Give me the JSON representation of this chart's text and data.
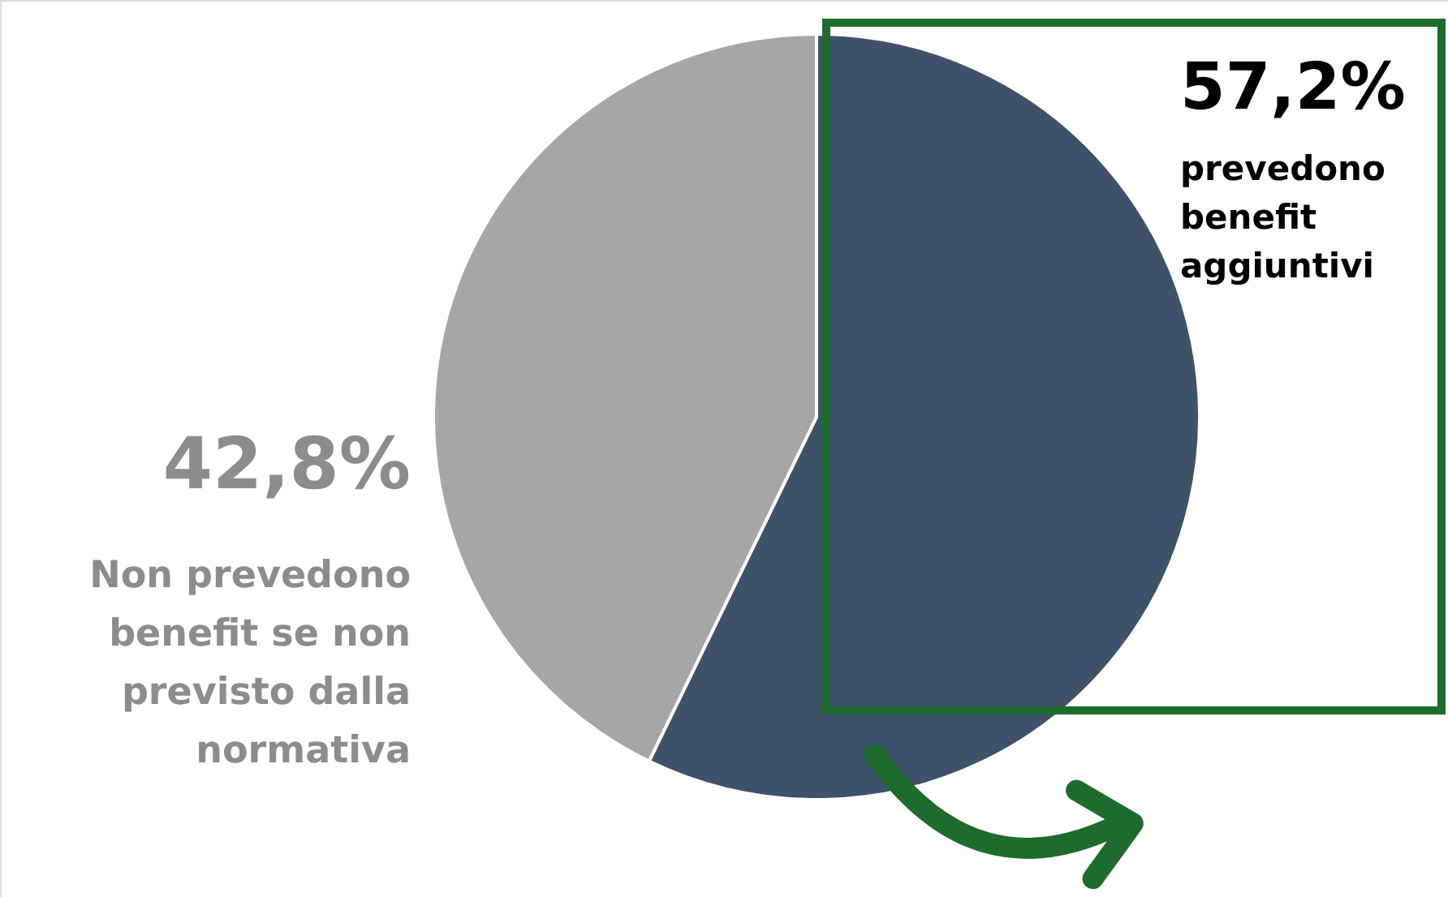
{
  "chart_data": {
    "type": "pie",
    "categories": [
      "prevedono benefit aggiuntivi",
      "Non prevedono benefit se non previsto dalla normativa"
    ],
    "values": [
      57.2,
      42.8
    ],
    "colors": [
      "#3e5269",
      "#a6a6a6"
    ],
    "value_labels": [
      "57,2%",
      "42,8%"
    ]
  }
}
